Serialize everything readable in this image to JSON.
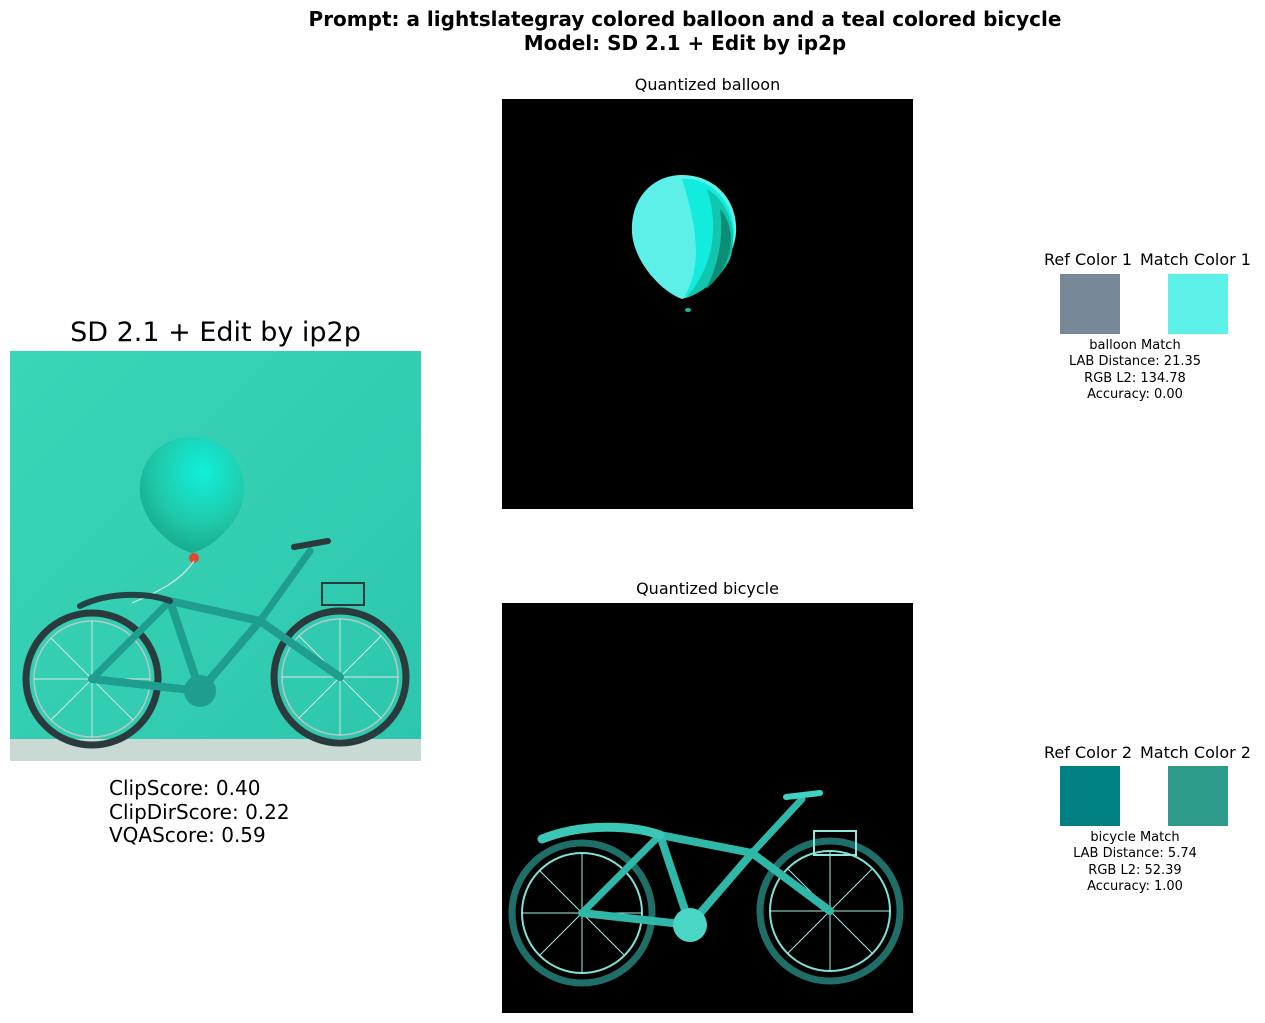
{
  "figure": {
    "title_line1": "Prompt: a lightslategray colored balloon and a teal colored bicycle",
    "title_line2": "Model: SD 2.1 + Edit by ip2p"
  },
  "generated": {
    "title": "SD 2.1 + Edit by ip2p",
    "scores": {
      "clip": "ClipScore: 0.40",
      "clip_dir": "ClipDirScore: 0.22",
      "vqa": "VQAScore: 0.59"
    }
  },
  "panels": {
    "balloon": {
      "title": "Quantized balloon"
    },
    "bicycle": {
      "title": "Quantized bicycle"
    }
  },
  "color_matches": [
    {
      "ref_label": "Ref Color 1",
      "match_label": "Match Color 1",
      "ref_color": "#778899",
      "match_color": "#5df0e8",
      "heading": "balloon Match",
      "lab_distance": "LAB Distance: 21.35",
      "rgb_l2": "RGB L2: 134.78",
      "accuracy": "Accuracy: 0.00"
    },
    {
      "ref_label": "Ref Color 2",
      "match_label": "Match Color 2",
      "ref_color": "#008080",
      "match_color": "#2e9a8a",
      "heading": "bicycle Match",
      "lab_distance": "LAB Distance: 5.74",
      "rgb_l2": "RGB L2: 52.39",
      "accuracy": "Accuracy: 1.00"
    }
  ]
}
